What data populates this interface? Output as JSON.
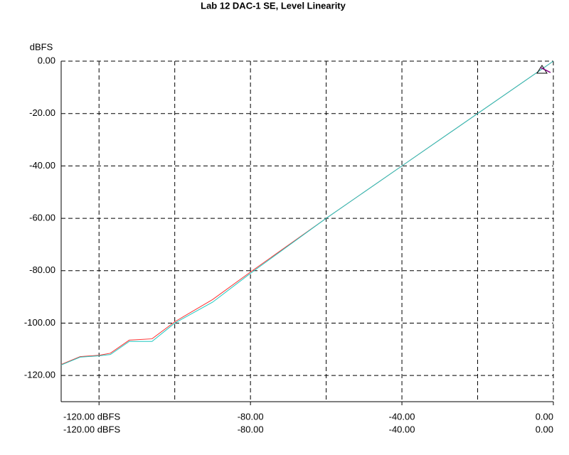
{
  "chart_data": {
    "type": "line",
    "title": "Lab 12 DAC-1 SE, Level Linearity",
    "ylabel": "dBFS",
    "xlim": [
      -130,
      0
    ],
    "ylim": [
      -130,
      0
    ],
    "xgrid": [
      -120,
      -100,
      -80,
      -60,
      -40,
      -20,
      0
    ],
    "xticks": [
      {
        "value": -120,
        "label": "-120.00 dBFS"
      },
      {
        "value": -80,
        "label": "-80.00"
      },
      {
        "value": -40,
        "label": "-40.00"
      },
      {
        "value": 0,
        "label": "0.00"
      }
    ],
    "x2ticks": [
      {
        "value": -120,
        "label": "-120.00 dBFS"
      },
      {
        "value": -80,
        "label": "-80.00"
      },
      {
        "value": -40,
        "label": "-40.00"
      },
      {
        "value": 0,
        "label": "0.00"
      }
    ],
    "yticks": [
      {
        "value": 0,
        "label": "0.00"
      },
      {
        "value": -20,
        "label": "-20.00"
      },
      {
        "value": -40,
        "label": "-40.00"
      },
      {
        "value": -60,
        "label": "-60.00"
      },
      {
        "value": -80,
        "label": "-80.00"
      },
      {
        "value": -100,
        "label": "-100.00"
      },
      {
        "value": -120,
        "label": "-120.00"
      }
    ],
    "grid": true,
    "x": [
      -130,
      -125,
      -120,
      -117,
      -112,
      -106,
      -100,
      -90,
      -80,
      -60,
      -40,
      -20,
      0
    ],
    "series": [
      {
        "color": "#ff3030",
        "values": [
          -115.8,
          -112.8,
          -112.3,
          -111.5,
          -106.5,
          -106,
          -99.5,
          -91,
          -80.5,
          -60,
          -40,
          -20,
          0
        ]
      },
      {
        "color": "#20c8c0",
        "values": [
          -116,
          -113,
          -112.5,
          -112,
          -107,
          -107,
          -100,
          -92,
          -81,
          -60,
          -40,
          -20,
          0
        ]
      }
    ]
  }
}
